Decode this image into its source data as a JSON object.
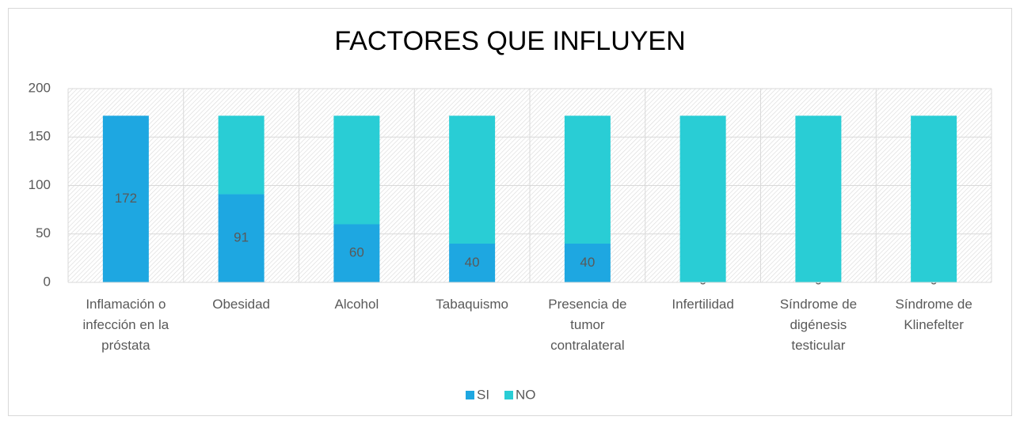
{
  "chart_data": {
    "type": "stacked_bar",
    "title": "FACTORES QUE INFLUYEN",
    "categories": [
      "Inflamación o infección en la próstata",
      "Obesidad",
      "Alcohol",
      "Tabaquismo",
      "Presencia de tumor contralateral",
      "Infertilidad",
      "Síndrome de digénesis testicular",
      "Síndrome de Klinefelter"
    ],
    "series": [
      {
        "name": "SI",
        "color": "#1ea7e1",
        "values": [
          172,
          91,
          60,
          40,
          40,
          0,
          0,
          0
        ]
      },
      {
        "name": "NO",
        "color": "#29cdd5",
        "values": [
          0,
          81,
          112,
          132,
          132,
          172,
          172,
          172
        ]
      }
    ],
    "ylim": [
      0,
      200
    ],
    "yticks": [
      0,
      50,
      100,
      150,
      200
    ],
    "grid": true,
    "legend": "bottom"
  }
}
